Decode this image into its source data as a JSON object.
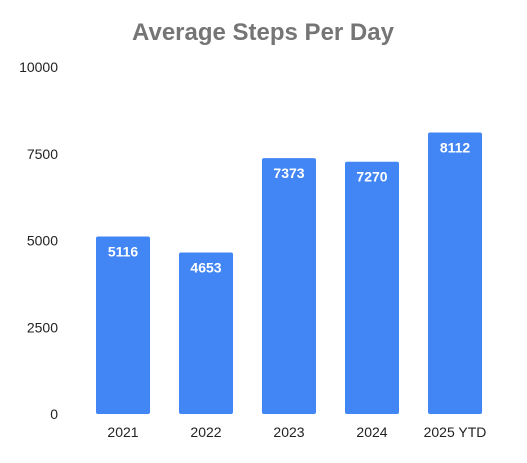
{
  "chart_data": {
    "type": "bar",
    "title": "Average Steps Per Day",
    "xlabel": "",
    "ylabel": "",
    "categories": [
      "2021",
      "2022",
      "2023",
      "2024",
      "2025 YTD"
    ],
    "values": [
      5116,
      4653,
      7373,
      7270,
      8112
    ],
    "data_labels": [
      "5116",
      "4653",
      "7373",
      "7270",
      "8112"
    ],
    "ylim": [
      0,
      10000
    ],
    "yticks": [
      0,
      2500,
      5000,
      7500,
      10000
    ],
    "ytick_labels": [
      "0",
      "2500",
      "5000",
      "7500",
      "10000"
    ],
    "grid": false,
    "legend": "none",
    "bar_color": "#4285F4"
  }
}
